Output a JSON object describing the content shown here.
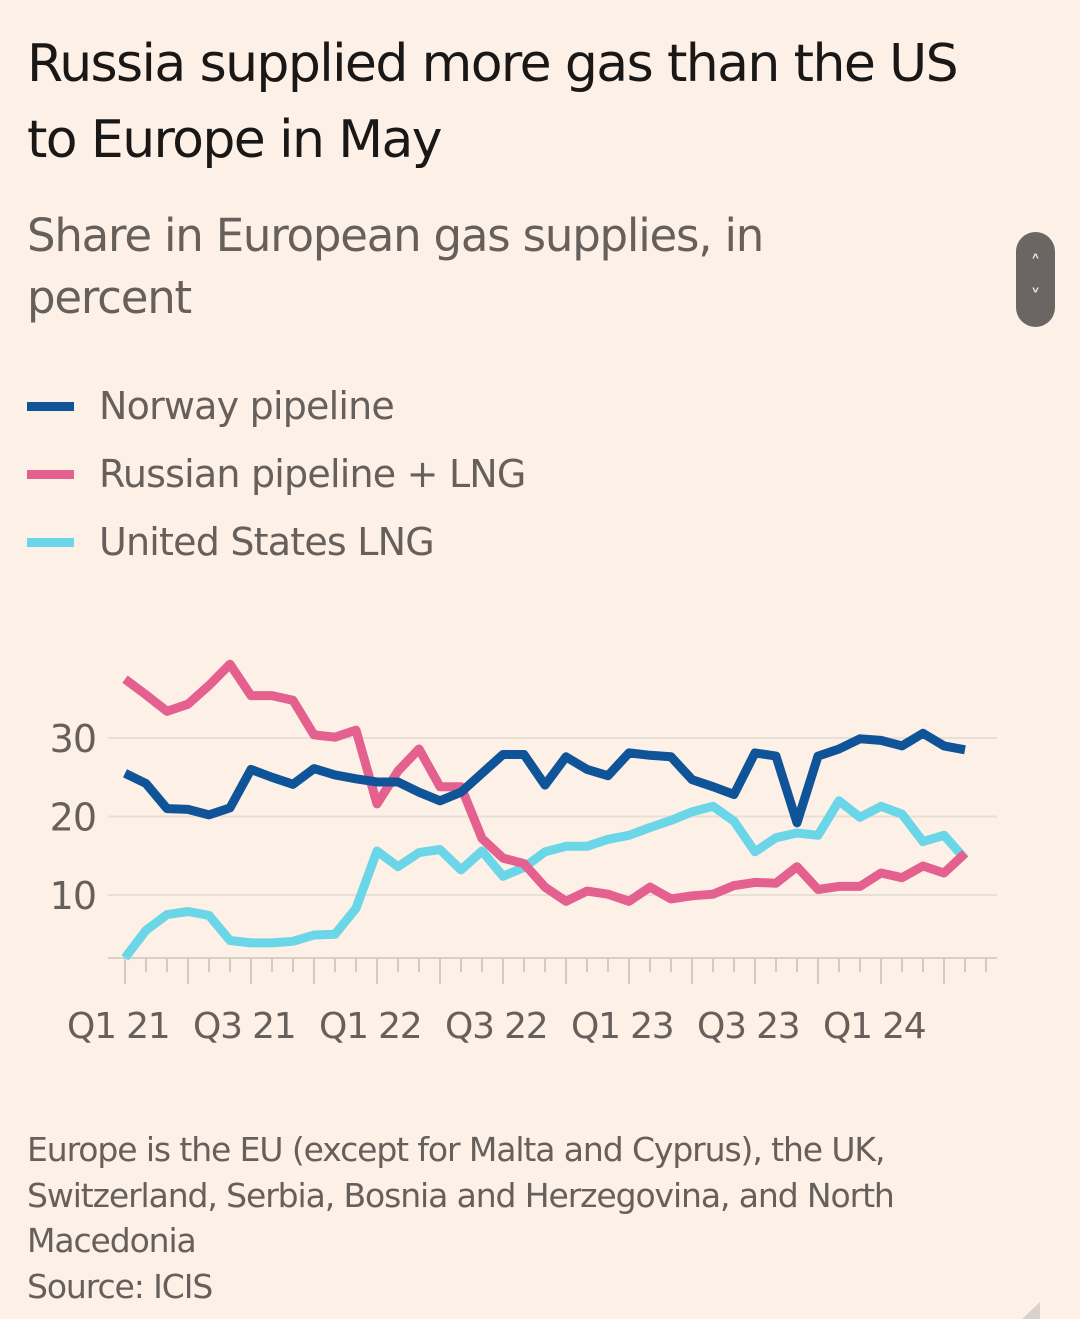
{
  "header": {
    "title": "Russia supplied more gas than the US to Europe in May",
    "subtitle": "Share in European gas supplies, in percent"
  },
  "legend": [
    {
      "label": "Norway pipeline",
      "color": "#0f5499"
    },
    {
      "label": "Russian pipeline + LNG",
      "color": "#e3608f"
    },
    {
      "label": "United States LNG",
      "color": "#6ad6e8"
    }
  ],
  "scroll_control": {
    "up_icon": "˄",
    "down_icon": "˅"
  },
  "footnote": {
    "note": "Europe is the EU (except for Malta and Cyprus), the UK, Switzerland, Serbia, Bosnia and Herzegovina, and North Macedonia",
    "source": "Source: ICIS"
  },
  "chart_data": {
    "type": "line",
    "title": "Russia supplied more gas than the US to Europe in May",
    "subtitle": "Share in European gas supplies, in percent",
    "xlabel": "",
    "ylabel": "",
    "ylim": [
      2,
      38
    ],
    "yticks": [
      10,
      20,
      30
    ],
    "grid": true,
    "legend_position": "top-left",
    "x_start": "Jan 2021",
    "x_end": "May 2024",
    "x_unit": "month",
    "x_tick_labels": [
      "Q1 21",
      "Q3 21",
      "Q1 22",
      "Q3 22",
      "Q1 23",
      "Q3 23",
      "Q1 24"
    ],
    "x_tick_label_months": [
      0,
      6,
      12,
      18,
      24,
      30,
      36
    ],
    "series": [
      {
        "name": "Norway pipeline",
        "color": "#0f5499",
        "values": [
          25.5,
          24.2,
          21.0,
          20.9,
          20.2,
          21.1,
          26.0,
          25.0,
          24.1,
          26.1,
          25.3,
          24.8,
          24.4,
          24.4,
          23.1,
          22.0,
          23.1,
          25.5,
          27.9,
          27.9,
          24.0,
          27.6,
          26.0,
          25.2,
          28.1,
          27.8,
          27.6,
          24.7,
          23.8,
          22.8,
          28.1,
          27.7,
          19.2,
          27.7,
          28.6,
          29.9,
          29.7,
          29.0,
          30.6,
          29.0,
          28.5
        ]
      },
      {
        "name": "Russian pipeline + LNG",
        "color": "#e3608f",
        "values": [
          37.5,
          35.5,
          33.4,
          34.3,
          36.7,
          39.4,
          35.4,
          35.4,
          34.8,
          30.4,
          30.1,
          31.0,
          21.6,
          25.8,
          28.6,
          23.8,
          23.8,
          17.2,
          14.7,
          14.0,
          11.0,
          9.2,
          10.5,
          10.1,
          9.2,
          11.0,
          9.5,
          9.9,
          10.1,
          11.2,
          11.6,
          11.5,
          13.6,
          10.7,
          11.1,
          11.1,
          12.8,
          12.2,
          13.7,
          12.8,
          15.3
        ]
      },
      {
        "name": "United States LNG",
        "color": "#6ad6e8",
        "values": [
          2.0,
          5.5,
          7.5,
          7.9,
          7.4,
          4.2,
          3.9,
          3.9,
          4.1,
          4.9,
          5.0,
          8.3,
          15.6,
          13.6,
          15.4,
          15.8,
          13.2,
          15.6,
          12.4,
          13.5,
          15.5,
          16.2,
          16.2,
          17.1,
          17.6,
          18.6,
          19.5,
          20.6,
          21.3,
          19.4,
          15.5,
          17.3,
          17.9,
          17.6,
          22.0,
          19.9,
          21.3,
          20.3,
          16.8,
          17.6,
          14.6
        ]
      }
    ]
  }
}
